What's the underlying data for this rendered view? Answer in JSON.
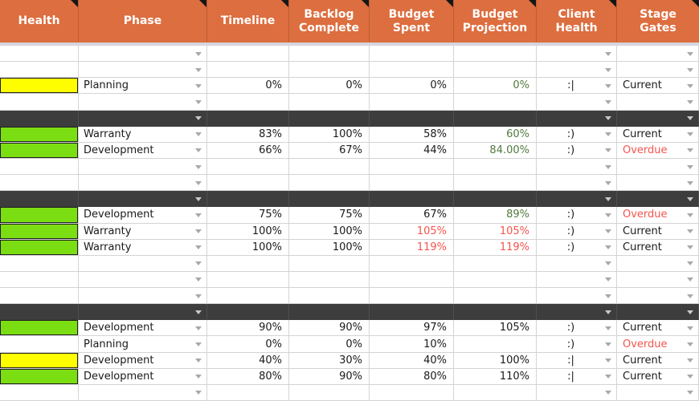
{
  "table": {
    "columns": [
      {
        "key": "health",
        "label": "Health"
      },
      {
        "key": "phase",
        "label": "Phase"
      },
      {
        "key": "timeline",
        "label": "Timeline"
      },
      {
        "key": "backlog",
        "label": "Backlog\nComplete"
      },
      {
        "key": "spent",
        "label": "Budget\nSpent"
      },
      {
        "key": "projection",
        "label": "Budget\nProjection"
      },
      {
        "key": "client",
        "label": "Client\nHealth"
      },
      {
        "key": "stage",
        "label": "Stage\nGates"
      }
    ],
    "dropdown_columns": [
      "phase",
      "client",
      "stage"
    ],
    "rows": [
      {
        "type": "empty"
      },
      {
        "type": "empty"
      },
      {
        "type": "data",
        "health": "yellow",
        "phase": "Planning",
        "timeline": "0%",
        "backlog": "0%",
        "spent": "0%",
        "projection": "0%",
        "client": ":|",
        "stage": "Current",
        "styles": {
          "projection": "green"
        }
      },
      {
        "type": "empty"
      },
      {
        "type": "separator"
      },
      {
        "type": "data",
        "health": "green",
        "phase": "Warranty",
        "timeline": "83%",
        "backlog": "100%",
        "spent": "58%",
        "projection": "60%",
        "client": ":)",
        "stage": "Current",
        "styles": {
          "projection": "green"
        }
      },
      {
        "type": "data",
        "health": "green",
        "phase": "Development",
        "timeline": "66%",
        "backlog": "67%",
        "spent": "44%",
        "projection": "84.00%",
        "client": ":)",
        "stage": "Overdue",
        "styles": {
          "projection": "green",
          "stage": "red"
        }
      },
      {
        "type": "empty"
      },
      {
        "type": "empty"
      },
      {
        "type": "separator"
      },
      {
        "type": "data",
        "health": "green",
        "phase": "Development",
        "timeline": "75%",
        "backlog": "75%",
        "spent": "67%",
        "projection": "89%",
        "client": ":)",
        "stage": "Overdue",
        "styles": {
          "projection": "green",
          "stage": "red"
        }
      },
      {
        "type": "data",
        "health": "green",
        "phase": "Warranty",
        "timeline": "100%",
        "backlog": "100%",
        "spent": "105%",
        "projection": "105%",
        "client": ":)",
        "stage": "Current",
        "styles": {
          "spent": "red",
          "projection": "red"
        }
      },
      {
        "type": "data",
        "health": "green",
        "phase": "Warranty",
        "timeline": "100%",
        "backlog": "100%",
        "spent": "119%",
        "projection": "119%",
        "client": ":)",
        "stage": "Current",
        "styles": {
          "spent": "red",
          "projection": "red"
        }
      },
      {
        "type": "empty"
      },
      {
        "type": "empty"
      },
      {
        "type": "empty"
      },
      {
        "type": "separator"
      },
      {
        "type": "data",
        "health": "green",
        "phase": "Development",
        "timeline": "90%",
        "backlog": "90%",
        "spent": "97%",
        "projection": "105%",
        "client": ":)",
        "stage": "Current",
        "styles": {}
      },
      {
        "type": "data",
        "health": "none",
        "phase": "Planning",
        "timeline": "0%",
        "backlog": "0%",
        "spent": "10%",
        "projection": "",
        "client": ":)",
        "stage": "Overdue",
        "styles": {
          "stage": "red"
        }
      },
      {
        "type": "data",
        "health": "yellow",
        "phase": "Development",
        "timeline": "40%",
        "backlog": "30%",
        "spent": "40%",
        "projection": "100%",
        "client": ":|",
        "stage": "Current",
        "styles": {}
      },
      {
        "type": "data",
        "health": "green",
        "phase": "Development",
        "timeline": "80%",
        "backlog": "90%",
        "spent": "80%",
        "projection": "110%",
        "client": ":|",
        "stage": "Current",
        "styles": {}
      },
      {
        "type": "empty"
      }
    ]
  },
  "colors": {
    "header_bg": "#DD6E3F",
    "header_text": "#FFFFFF",
    "divider": "#D5D6DE",
    "separator_bg": "#3D3D3D",
    "separator_grid": "#4F4F4F",
    "health_green": "#7BDE12",
    "health_yellow": "#FFFE00",
    "text_black": "#1A1A1A",
    "text_red": "#F5544D",
    "text_green": "#507A3D",
    "gridline": "#D4D4D4",
    "arrow": "#A9A9A9",
    "arrow_light": "#C9C9C9",
    "note_corner": "#161616",
    "cell_bg": "#FFFFFF"
  }
}
